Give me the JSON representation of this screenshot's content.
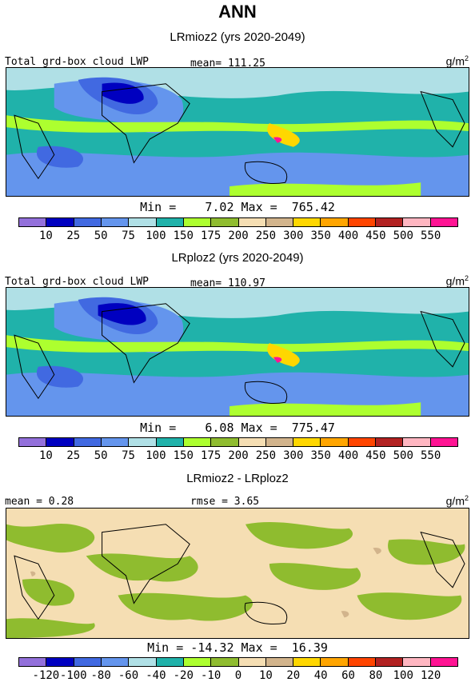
{
  "main_title": "ANN",
  "panels": [
    {
      "title": "LRmioz2 (yrs 2020-2049)",
      "left_label": "Total grd-box cloud LWP",
      "mid_label": "mean= 111.25",
      "unit_base": "g/m",
      "unit_exp": "2",
      "minmax": "Min =    7.02 Max =  765.42",
      "ticks": [
        "10",
        "25",
        "50",
        "75",
        "100",
        "150",
        "175",
        "200",
        "250",
        "300",
        "350",
        "400",
        "450",
        "500",
        "550"
      ]
    },
    {
      "title": "LRploz2 (yrs 2020-2049)",
      "left_label": "Total grd-box cloud LWP",
      "mid_label": "mean= 110.97",
      "unit_base": "g/m",
      "unit_exp": "2",
      "minmax": "Min =    6.08 Max =  775.47",
      "ticks": [
        "10",
        "25",
        "50",
        "75",
        "100",
        "150",
        "175",
        "200",
        "250",
        "300",
        "350",
        "400",
        "450",
        "500",
        "550"
      ]
    },
    {
      "title": "LRmioz2 - LRploz2",
      "left_label": "mean =    0.28",
      "mid_label": "rmse =    3.65",
      "unit_base": "g/m",
      "unit_exp": "2",
      "minmax": "Min = -14.32 Max =  16.39",
      "ticks": [
        "-120",
        "-100",
        "-80",
        "-60",
        "-40",
        "-20",
        "-10",
        "0",
        "10",
        "20",
        "40",
        "60",
        "80",
        "100",
        "120"
      ]
    }
  ],
  "colormap": [
    "#9370db",
    "#0000c0",
    "#4169e1",
    "#6495ed",
    "#b0e0e6",
    "#20b2aa",
    "#adff2f",
    "#8fbc2f",
    "#f5deb3",
    "#d2b48c",
    "#ffd700",
    "#ffa500",
    "#ff4500",
    "#b22222",
    "#ffb6c1",
    "#ff1493"
  ]
}
